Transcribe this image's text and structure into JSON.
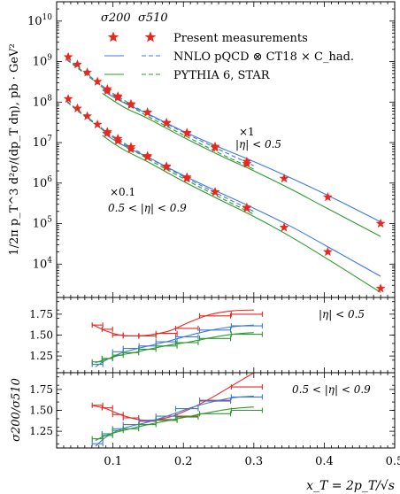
{
  "chart_data": [
    {
      "type": "scatter",
      "panel": "main",
      "ylabel": "1/2π p_T^3 d²σ/(dp_T dη), pb · GeV²",
      "yscale": "log",
      "ylim": [
        1500,
        30000000000
      ],
      "ytick_labels": [
        "10^4",
        "10^5",
        "10^6",
        "10^7",
        "10^8",
        "10^9",
        "10^10"
      ],
      "legend": {
        "header_left": "σ200",
        "header_right": "σ510",
        "entries": [
          "Present measurements",
          "NNLO pQCD ⊗ CT18 × C_had.",
          "PYTHIA 6, STAR"
        ],
        "placement": "top-left"
      },
      "annotations": [
        {
          "text_main": "×1",
          "text_sub": "|η| < 0.5"
        },
        {
          "text_main": "×0.1",
          "text_sub": "0.5 < |η| < 0.9"
        }
      ],
      "series": [
        {
          "group": "|η| < 0.5",
          "energy": "510 GeV",
          "kind": "data",
          "x": [
            0.0365,
            0.0495,
            0.0635,
            0.078,
            0.092,
            0.107,
            0.1255,
            0.149,
            0.176,
            0.205,
            0.245,
            0.29
          ],
          "y": [
            1300000000.0,
            850000000.0,
            540000000.0,
            320000000.0,
            210000000.0,
            140000000.0,
            90000000.0,
            56000000.0,
            31000000.0,
            17500000.0,
            7500000.0,
            3000000.0
          ]
        },
        {
          "group": "|η| < 0.5",
          "energy": "200 GeV",
          "kind": "data",
          "x": [
            0.092,
            0.107,
            0.1255,
            0.149,
            0.176,
            0.205,
            0.245,
            0.29,
            0.343,
            0.405,
            0.48
          ],
          "y": [
            190000000.0,
            130000000.0,
            85000000.0,
            55000000.0,
            30000000.0,
            17000000.0,
            8000000.0,
            3400000.0,
            1300000.0,
            450000.0,
            100000.0
          ]
        },
        {
          "group": "0.5 < |η| < 0.9",
          "energy": "510 GeV",
          "kind": "data",
          "x": [
            0.0365,
            0.0495,
            0.0635,
            0.078,
            0.092,
            0.107,
            0.1255,
            0.149,
            0.176,
            0.205,
            0.245,
            0.29
          ],
          "y": [
            120000000.0,
            70000000.0,
            45000000.0,
            28000000.0,
            18500000.0,
            12500000.0,
            7800000.0,
            4700000.0,
            2600000.0,
            1400000.0,
            600000.0,
            240000.0
          ]
        },
        {
          "group": "0.5 < |η| < 0.9",
          "energy": "200 GeV",
          "kind": "data",
          "x": [
            0.092,
            0.107,
            0.1255,
            0.149,
            0.176,
            0.205,
            0.245,
            0.29,
            0.343,
            0.405,
            0.48
          ],
          "y": [
            17000000.0,
            11000000.0,
            6900000.0,
            4400000.0,
            2500000.0,
            1300000.0,
            600000.0,
            250000.0,
            80000.0,
            20000.0,
            2500.0
          ]
        },
        {
          "group": "|η| < 0.5",
          "energy": "200 GeV",
          "kind": "NNLO",
          "x": [
            0.085,
            0.1,
            0.12,
            0.15,
            0.2,
            0.25,
            0.3,
            0.35,
            0.4,
            0.48
          ],
          "y": [
            200000000.0,
            135000000.0,
            88000000.0,
            51000000.0,
            19000000.0,
            7800000.0,
            3400000.0,
            1400000.0,
            550000.0,
            110000.0
          ]
        },
        {
          "group": "|η| < 0.5",
          "energy": "510 GeV",
          "kind": "NNLO",
          "x": [
            0.035,
            0.05,
            0.07,
            0.1,
            0.15,
            0.2,
            0.25,
            0.3
          ],
          "y": [
            1150000000.0,
            720000000.0,
            400000000.0,
            165000000.0,
            50000000.0,
            18000000.0,
            6800000.0,
            2700000.0
          ]
        },
        {
          "group": "|η| < 0.5",
          "energy": "200 GeV",
          "kind": "PYTHIA",
          "x": [
            0.085,
            0.1,
            0.12,
            0.15,
            0.2,
            0.25,
            0.3,
            0.35,
            0.4,
            0.48
          ],
          "y": [
            165000000.0,
            110000000.0,
            68000000.0,
            39000000.0,
            13500000.0,
            5000000.0,
            2000000.0,
            750000.0,
            260000.0,
            48000.0
          ]
        },
        {
          "group": "|η| < 0.5",
          "energy": "510 GeV",
          "kind": "PYTHIA",
          "x": [
            0.035,
            0.05,
            0.07,
            0.1,
            0.15,
            0.2,
            0.25,
            0.3
          ],
          "y": [
            1100000000.0,
            680000000.0,
            370000000.0,
            150000000.0,
            44000000.0,
            15500000.0,
            5600000.0,
            2200000.0
          ]
        },
        {
          "group": "0.5 < |η| < 0.9",
          "energy": "200 GeV",
          "kind": "NNLO",
          "x": [
            0.085,
            0.1,
            0.12,
            0.15,
            0.2,
            0.25,
            0.3,
            0.35,
            0.4,
            0.48
          ],
          "y": [
            18000000.0,
            12000000.0,
            7600000.0,
            4300000.0,
            1550000.0,
            600000.0,
            240000.0,
            90000.0,
            30000.0,
            5000.0
          ]
        },
        {
          "group": "0.5 < |η| < 0.9",
          "energy": "510 GeV",
          "kind": "NNLO",
          "x": [
            0.035,
            0.05,
            0.07,
            0.1,
            0.15,
            0.2,
            0.25,
            0.3
          ],
          "y": [
            105000000.0,
            64000000.0,
            35000000.0,
            14500000.0,
            4300000.0,
            1450000.0,
            530000.0,
            200000.0
          ]
        },
        {
          "group": "0.5 < |η| < 0.9",
          "energy": "200 GeV",
          "kind": "PYTHIA",
          "x": [
            0.085,
            0.1,
            0.12,
            0.15,
            0.2,
            0.25,
            0.3,
            0.35,
            0.4,
            0.48
          ],
          "y": [
            15000000.0,
            9800000.0,
            6000000.0,
            3300000.0,
            1100000.0,
            400000.0,
            150000.0,
            50000.0,
            15000.0,
            2000.0
          ]
        },
        {
          "group": "0.5 < |η| < 0.9",
          "energy": "510 GeV",
          "kind": "PYTHIA",
          "x": [
            0.035,
            0.05,
            0.07,
            0.1,
            0.15,
            0.2,
            0.25,
            0.3
          ],
          "y": [
            100000000.0,
            60000000.0,
            33000000.0,
            13500000.0,
            3900000.0,
            1300000.0,
            460000.0,
            170000.0
          ]
        }
      ]
    },
    {
      "type": "line",
      "panel": "ratio-top",
      "ylabel": "σ200/σ510",
      "ylim": [
        1.05,
        1.95
      ],
      "ytick_labels": [
        "1.25",
        "1.50",
        "1.75"
      ],
      "annotation": "|η| < 0.5",
      "series": [
        {
          "kind": "data",
          "x": [
            0.078,
            0.092,
            0.107,
            0.1255,
            0.149,
            0.176,
            0.205,
            0.245,
            0.29
          ],
          "xerr": [
            0.0075,
            0.0075,
            0.0075,
            0.011,
            0.012,
            0.015,
            0.016,
            0.022,
            0.022
          ],
          "y": [
            1.62,
            1.57,
            1.5,
            1.49,
            1.49,
            1.52,
            1.58,
            1.73,
            1.75
          ]
        },
        {
          "kind": "data-fit",
          "x": [
            0.07,
            0.09,
            0.11,
            0.13,
            0.15,
            0.18,
            0.21,
            0.24,
            0.27,
            0.3
          ],
          "y": [
            1.63,
            1.55,
            1.5,
            1.49,
            1.5,
            1.55,
            1.66,
            1.75,
            1.79,
            1.8
          ]
        },
        {
          "kind": "NNLO",
          "x": [
            0.078,
            0.092,
            0.107,
            0.1255,
            0.149,
            0.176,
            0.205,
            0.245,
            0.29
          ],
          "xerr": [
            0.0075,
            0.0075,
            0.0075,
            0.011,
            0.012,
            0.015,
            0.016,
            0.022,
            0.022
          ],
          "y": [
            1.15,
            1.22,
            1.3,
            1.34,
            1.37,
            1.42,
            1.48,
            1.56,
            1.61
          ]
        },
        {
          "kind": "NNLO-fit",
          "x": [
            0.075,
            0.09,
            0.11,
            0.13,
            0.15,
            0.18,
            0.21,
            0.24,
            0.27,
            0.3
          ],
          "y": [
            1.12,
            1.2,
            1.28,
            1.33,
            1.37,
            1.43,
            1.5,
            1.56,
            1.6,
            1.62
          ]
        },
        {
          "kind": "PYTHIA",
          "x": [
            0.078,
            0.092,
            0.107,
            0.1255,
            0.149,
            0.176,
            0.205,
            0.245,
            0.29
          ],
          "xerr": [
            0.0075,
            0.0075,
            0.0075,
            0.011,
            0.012,
            0.015,
            0.016,
            0.022,
            0.022
          ],
          "y": [
            1.18,
            1.22,
            1.26,
            1.29,
            1.33,
            1.37,
            1.41,
            1.46,
            1.51
          ]
        },
        {
          "kind": "PYTHIA-fit",
          "x": [
            0.075,
            0.09,
            0.11,
            0.13,
            0.15,
            0.18,
            0.21,
            0.24,
            0.27,
            0.3
          ],
          "y": [
            1.17,
            1.21,
            1.26,
            1.29,
            1.33,
            1.38,
            1.42,
            1.47,
            1.51,
            1.53
          ]
        }
      ]
    },
    {
      "type": "line",
      "panel": "ratio-bottom",
      "ylabel": "σ200/σ510",
      "ylim": [
        1.05,
        1.95
      ],
      "ytick_labels": [
        "1.25",
        "1.50",
        "1.75"
      ],
      "annotation": "0.5 < |η| < 0.9",
      "series": [
        {
          "kind": "data",
          "x": [
            0.078,
            0.092,
            0.107,
            0.1255,
            0.149,
            0.176,
            0.205,
            0.245,
            0.29
          ],
          "xerr": [
            0.0075,
            0.0075,
            0.0075,
            0.011,
            0.012,
            0.015,
            0.016,
            0.022,
            0.022
          ],
          "y": [
            1.56,
            1.53,
            1.45,
            1.41,
            1.37,
            1.39,
            1.43,
            1.62,
            1.78
          ]
        },
        {
          "kind": "data-fit",
          "x": [
            0.07,
            0.09,
            0.11,
            0.13,
            0.15,
            0.18,
            0.21,
            0.24,
            0.27,
            0.3
          ],
          "y": [
            1.56,
            1.52,
            1.45,
            1.4,
            1.38,
            1.42,
            1.52,
            1.65,
            1.8,
            1.95
          ]
        },
        {
          "kind": "NNLO",
          "x": [
            0.078,
            0.092,
            0.107,
            0.1255,
            0.149,
            0.176,
            0.205,
            0.245,
            0.29
          ],
          "xerr": [
            0.0075,
            0.0075,
            0.0075,
            0.011,
            0.012,
            0.015,
            0.016,
            0.022,
            0.022
          ],
          "y": [
            1.1,
            1.22,
            1.28,
            1.33,
            1.38,
            1.43,
            1.52,
            1.61,
            1.66
          ]
        },
        {
          "kind": "NNLO-fit",
          "x": [
            0.075,
            0.09,
            0.11,
            0.13,
            0.15,
            0.18,
            0.21,
            0.24,
            0.27,
            0.3
          ],
          "y": [
            1.07,
            1.18,
            1.27,
            1.32,
            1.36,
            1.44,
            1.53,
            1.6,
            1.65,
            1.67
          ]
        },
        {
          "kind": "PYTHIA",
          "x": [
            0.078,
            0.092,
            0.107,
            0.1255,
            0.149,
            0.176,
            0.205,
            0.245,
            0.29
          ],
          "xerr": [
            0.0075,
            0.0075,
            0.0075,
            0.011,
            0.012,
            0.015,
            0.016,
            0.022,
            0.022
          ],
          "y": [
            1.16,
            1.2,
            1.26,
            1.28,
            1.33,
            1.38,
            1.42,
            1.46,
            1.5
          ]
        },
        {
          "kind": "PYTHIA-fit",
          "x": [
            0.075,
            0.09,
            0.11,
            0.13,
            0.15,
            0.18,
            0.21,
            0.24,
            0.27,
            0.3
          ],
          "y": [
            1.14,
            1.2,
            1.25,
            1.29,
            1.33,
            1.38,
            1.43,
            1.48,
            1.52,
            1.54
          ]
        }
      ]
    }
  ],
  "shared_x_axis": {
    "xlabel": "x_T = 2p_T/√s",
    "xlim": [
      0.02,
      0.5
    ],
    "ticks": [
      0.1,
      0.2,
      0.3,
      0.4,
      0.5
    ],
    "tick_labels": [
      "0.1",
      "0.2",
      "0.3",
      "0.4",
      "0.5"
    ]
  },
  "colors": {
    "data": "#e8271f",
    "nnlo": "#3d7ae0",
    "pythia": "#2e9a2e",
    "axis": "#000000"
  }
}
